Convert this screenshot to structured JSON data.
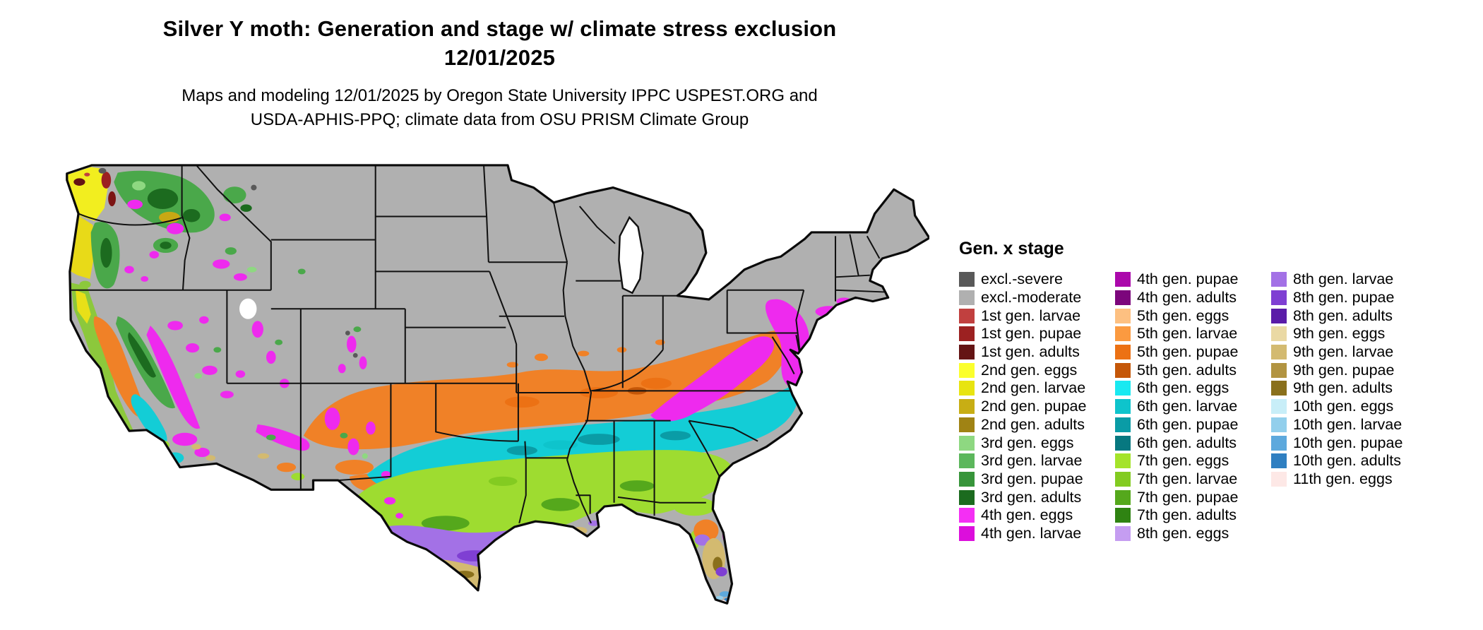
{
  "header": {
    "title": "Silver Y moth: Generation and stage w/ climate stress exclusion",
    "date": "12/01/2025",
    "subtitle_line1": "Maps and modeling 12/01/2025 by Oregon State University IPPC USPEST.ORG and",
    "subtitle_line2": "USDA-APHIS-PPQ; climate data from OSU PRISM Climate Group"
  },
  "legend": {
    "title": "Gen. x stage",
    "columns": [
      {
        "items": [
          {
            "label": "excl.-severe",
            "color": "#595959"
          },
          {
            "label": "excl.-moderate",
            "color": "#b0b0b0"
          },
          {
            "label": "1st gen. larvae",
            "color": "#c1403f"
          },
          {
            "label": "1st gen. pupae",
            "color": "#9c2121"
          },
          {
            "label": "1st gen. adults",
            "color": "#641414"
          },
          {
            "label": "2nd gen. eggs",
            "color": "#fbff2d"
          },
          {
            "label": "2nd gen. larvae",
            "color": "#e8e410"
          },
          {
            "label": "2nd gen. pupae",
            "color": "#c8ae14"
          },
          {
            "label": "2nd gen. adults",
            "color": "#a08314"
          },
          {
            "label": "3rd gen. eggs",
            "color": "#8ed881"
          },
          {
            "label": "3rd gen. larvae",
            "color": "#5cb75c"
          },
          {
            "label": "3rd gen. pupae",
            "color": "#37953a"
          },
          {
            "label": "3rd gen. adults",
            "color": "#1c6b1f"
          },
          {
            "label": "4th gen. eggs",
            "color": "#f42ff4"
          },
          {
            "label": "4th gen. larvae",
            "color": "#dc0edc"
          }
        ]
      },
      {
        "items": [
          {
            "label": "4th gen. pupae",
            "color": "#ab08ab"
          },
          {
            "label": "4th gen. adults",
            "color": "#7c067c"
          },
          {
            "label": "5th gen. eggs",
            "color": "#fdc081"
          },
          {
            "label": "5th gen. larvae",
            "color": "#fb9a40"
          },
          {
            "label": "5th gen. pupae",
            "color": "#ec7114"
          },
          {
            "label": "5th gen. adults",
            "color": "#c55708"
          },
          {
            "label": "6th gen. eggs",
            "color": "#19e9f1"
          },
          {
            "label": "6th gen. larvae",
            "color": "#0ec4cc"
          },
          {
            "label": "6th gen. pupae",
            "color": "#0a9ca6"
          },
          {
            "label": "6th gen. adults",
            "color": "#077880"
          },
          {
            "label": "7th gen. eggs",
            "color": "#a4e32a"
          },
          {
            "label": "7th gen. larvae",
            "color": "#83cb21"
          },
          {
            "label": "7th gen. pupae",
            "color": "#55a81c"
          },
          {
            "label": "7th gen. adults",
            "color": "#2f8312"
          },
          {
            "label": "8th gen. eggs",
            "color": "#c59df1"
          }
        ]
      },
      {
        "items": [
          {
            "label": "8th gen. larvae",
            "color": "#a371e6"
          },
          {
            "label": "8th gen. pupae",
            "color": "#7f3fd3"
          },
          {
            "label": "8th gen. adults",
            "color": "#5a1ca8"
          },
          {
            "label": "9th gen. eggs",
            "color": "#ead9a4"
          },
          {
            "label": "9th gen. larvae",
            "color": "#d3ba70"
          },
          {
            "label": "9th gen. pupae",
            "color": "#b29441"
          },
          {
            "label": "9th gen. adults",
            "color": "#8a701c"
          },
          {
            "label": "10th gen. eggs",
            "color": "#c8eef8"
          },
          {
            "label": "10th gen. larvae",
            "color": "#92cfec"
          },
          {
            "label": "10th gen. pupae",
            "color": "#5da9dd"
          },
          {
            "label": "10th gen. adults",
            "color": "#2f7fc1"
          },
          {
            "label": "11th gen. eggs",
            "color": "#fde8e6"
          }
        ]
      }
    ]
  }
}
